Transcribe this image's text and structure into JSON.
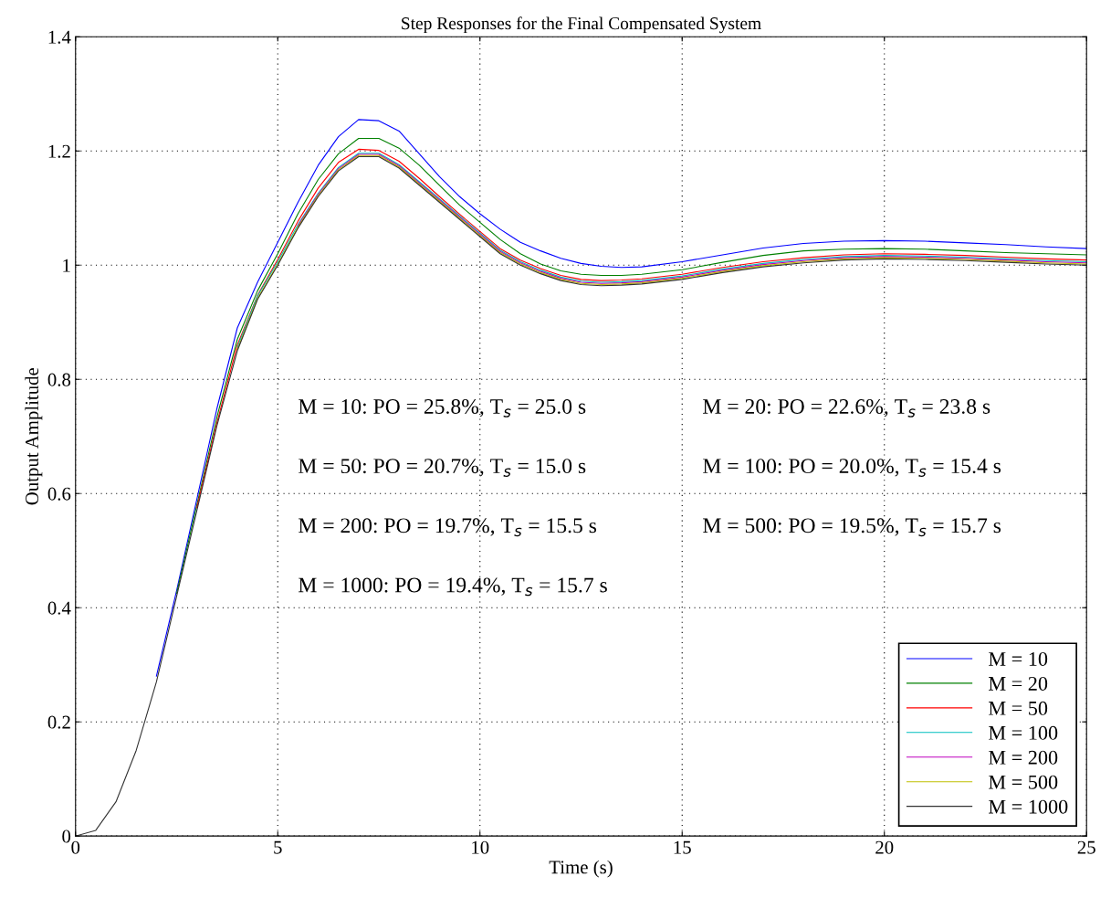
{
  "chart_data": {
    "type": "line",
    "title": "Step Responses for the Final Compensated System",
    "xlabel": "Time (s)",
    "ylabel": "Output Amplitude",
    "x": [
      0,
      0.5,
      1,
      1.5,
      2,
      2.5,
      3,
      3.5,
      4,
      4.5,
      5,
      5.5,
      6,
      6.5,
      7,
      7.5,
      8,
      8.5,
      9,
      9.5,
      10,
      10.5,
      11,
      11.5,
      12,
      12.5,
      13,
      13.5,
      14,
      15,
      16,
      17,
      18,
      19,
      20,
      21,
      22,
      23,
      24,
      25
    ],
    "series": [
      {
        "name": "M = 10",
        "color": "#0000ff",
        "values": [
          null,
          null,
          null,
          null,
          0.28,
          0.43,
          0.59,
          0.75,
          0.89,
          0.97,
          1.04,
          1.11,
          1.175,
          1.225,
          1.255,
          1.253,
          1.235,
          1.195,
          1.155,
          1.12,
          1.09,
          1.063,
          1.04,
          1.025,
          1.012,
          1.003,
          0.998,
          0.996,
          0.997,
          1.006,
          1.018,
          1.03,
          1.038,
          1.042,
          1.043,
          1.042,
          1.039,
          1.036,
          1.032,
          1.029
        ]
      },
      {
        "name": "M = 20",
        "color": "#008000",
        "values": [
          null,
          null,
          null,
          null,
          null,
          0.425,
          0.58,
          0.735,
          0.87,
          0.955,
          1.02,
          1.09,
          1.15,
          1.195,
          1.222,
          1.222,
          1.205,
          1.175,
          1.14,
          1.105,
          1.075,
          1.045,
          1.02,
          1.002,
          0.99,
          0.984,
          0.982,
          0.982,
          0.984,
          0.992,
          1.005,
          1.017,
          1.025,
          1.028,
          1.029,
          1.028,
          1.025,
          1.022,
          1.02,
          1.018
        ]
      },
      {
        "name": "M = 50",
        "color": "#ff0000",
        "values": [
          null,
          null,
          null,
          null,
          null,
          null,
          0.575,
          0.725,
          0.86,
          0.947,
          1.01,
          1.077,
          1.135,
          1.18,
          1.203,
          1.201,
          1.182,
          1.152,
          1.12,
          1.089,
          1.059,
          1.029,
          1.009,
          0.994,
          0.982,
          0.975,
          0.973,
          0.974,
          0.976,
          0.984,
          0.996,
          1.006,
          1.013,
          1.018,
          1.02,
          1.019,
          1.017,
          1.014,
          1.011,
          1.009
        ]
      },
      {
        "name": "M = 100",
        "color": "#00bfbf",
        "values": [
          null,
          null,
          null,
          null,
          null,
          null,
          null,
          null,
          0.856,
          0.946,
          1.006,
          1.071,
          1.126,
          1.171,
          1.196,
          1.196,
          1.176,
          1.146,
          1.116,
          1.086,
          1.056,
          1.026,
          1.006,
          0.991,
          0.979,
          0.972,
          0.97,
          0.971,
          0.973,
          0.981,
          0.993,
          1.003,
          1.01,
          1.015,
          1.017,
          1.016,
          1.014,
          1.011,
          1.008,
          1.006
        ]
      },
      {
        "name": "M = 200",
        "color": "#bf00bf",
        "values": [
          null,
          null,
          null,
          null,
          null,
          null,
          null,
          null,
          null,
          null,
          null,
          1.069,
          1.124,
          1.169,
          1.194,
          1.194,
          1.174,
          1.144,
          1.114,
          1.084,
          1.054,
          1.024,
          1.004,
          0.989,
          0.977,
          0.97,
          0.968,
          0.969,
          0.971,
          0.979,
          0.991,
          1.001,
          1.008,
          1.013,
          1.015,
          1.014,
          1.012,
          1.009,
          1.006,
          1.004
        ]
      },
      {
        "name": "M = 500",
        "color": "#bfbf00",
        "values": [
          null,
          null,
          null,
          null,
          null,
          null,
          null,
          null,
          0.852,
          0.942,
          1.002,
          1.067,
          1.122,
          1.167,
          1.192,
          1.192,
          1.172,
          1.142,
          1.112,
          1.082,
          1.052,
          1.022,
          1.002,
          0.987,
          0.975,
          0.968,
          0.966,
          0.967,
          0.969,
          0.977,
          0.989,
          0.999,
          1.006,
          1.011,
          1.013,
          1.012,
          1.01,
          1.007,
          1.004,
          1.002
        ]
      },
      {
        "name": "M = 1000",
        "color": "#333333",
        "values": [
          0,
          0.01,
          0.06,
          0.15,
          0.27,
          0.42,
          0.57,
          0.72,
          0.85,
          0.94,
          1.0,
          1.065,
          1.12,
          1.165,
          1.19,
          1.19,
          1.17,
          1.14,
          1.11,
          1.08,
          1.05,
          1.02,
          1.0,
          0.985,
          0.973,
          0.966,
          0.964,
          0.965,
          0.967,
          0.975,
          0.987,
          0.997,
          1.004,
          1.009,
          1.011,
          1.01,
          1.008,
          1.005,
          1.002,
          1.0
        ]
      }
    ],
    "xlim": [
      0,
      25
    ],
    "xticks": [
      0,
      5,
      10,
      15,
      20,
      25
    ],
    "ylim": [
      0,
      1.4
    ],
    "yticks": [
      0,
      0.2,
      0.4,
      0.6,
      0.8,
      1,
      1.2,
      1.4
    ],
    "grid": true,
    "legend": "bottom right",
    "marker": "none",
    "line_style": "solid",
    "annotations": [
      "M = 10: PO = 25.8%, T$_{s}$ = 25.0 s",
      "M = 20: PO = 22.6%, T$_{s}$ = 23.8 s",
      "M = 50: PO = 20.7%, T$_{s}$ = 15.0 s",
      "M = 100: PO = 20.0%, T$_{s}$ = 15.4 s",
      "M = 200: PO = 19.7%, T$_{s}$ = 15.5 s",
      "M = 500: PO = 19.5%, T$_{s}$ = 15.7 s",
      "M = 1000: PO = 19.4%, T$_{s}$ = 15.7 s"
    ]
  }
}
